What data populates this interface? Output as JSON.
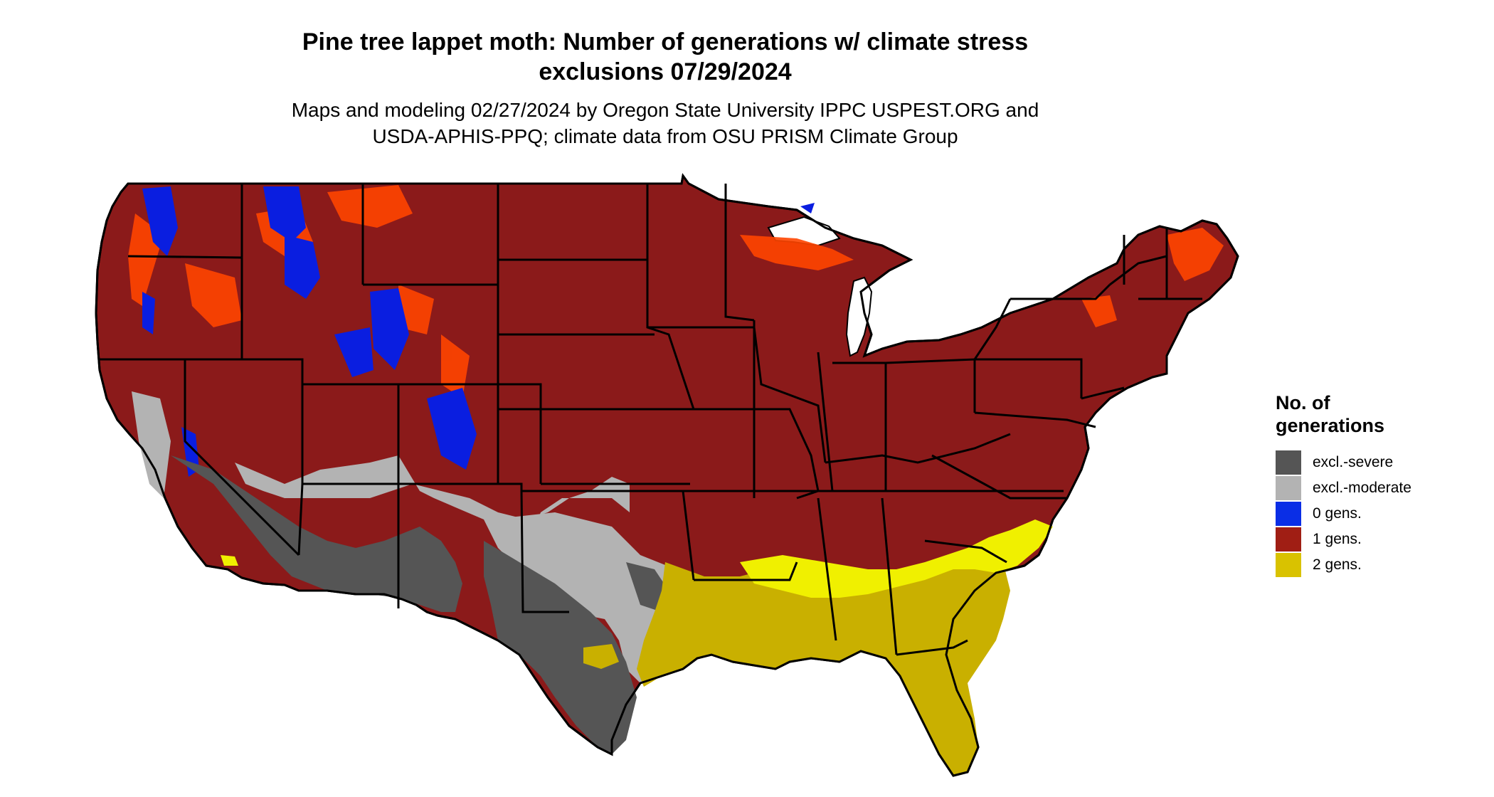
{
  "title_line1": "Pine tree lappet moth: Number of generations w/ climate stress",
  "title_line2": "exclusions 07/29/2024",
  "subtitle_line1": "Maps and modeling 02/27/2024 by Oregon State University IPPC USPEST.ORG and",
  "subtitle_line2": "USDA-APHIS-PPQ; climate data from OSU PRISM Climate Group",
  "legend": {
    "title_line1": "No. of",
    "title_line2": "generations",
    "items": [
      {
        "label": "excl.-severe",
        "color": "#555555"
      },
      {
        "label": "excl.-moderate",
        "color": "#b3b3b3"
      },
      {
        "label": "0 gens.",
        "color": "#0a2ee6"
      },
      {
        "label": "1 gens.",
        "color": "#a01e14"
      },
      {
        "label": "2 gens.",
        "color": "#d9c200"
      }
    ]
  },
  "colors": {
    "one_gen": "#8b1a1a",
    "zero_gen": "#0a1ee0",
    "two_gen": "#c9b000",
    "two_gen_bright": "#f0f000",
    "severe": "#555555",
    "moderate": "#b3b3b3",
    "orange": "#ff4500",
    "border": "#000000"
  }
}
